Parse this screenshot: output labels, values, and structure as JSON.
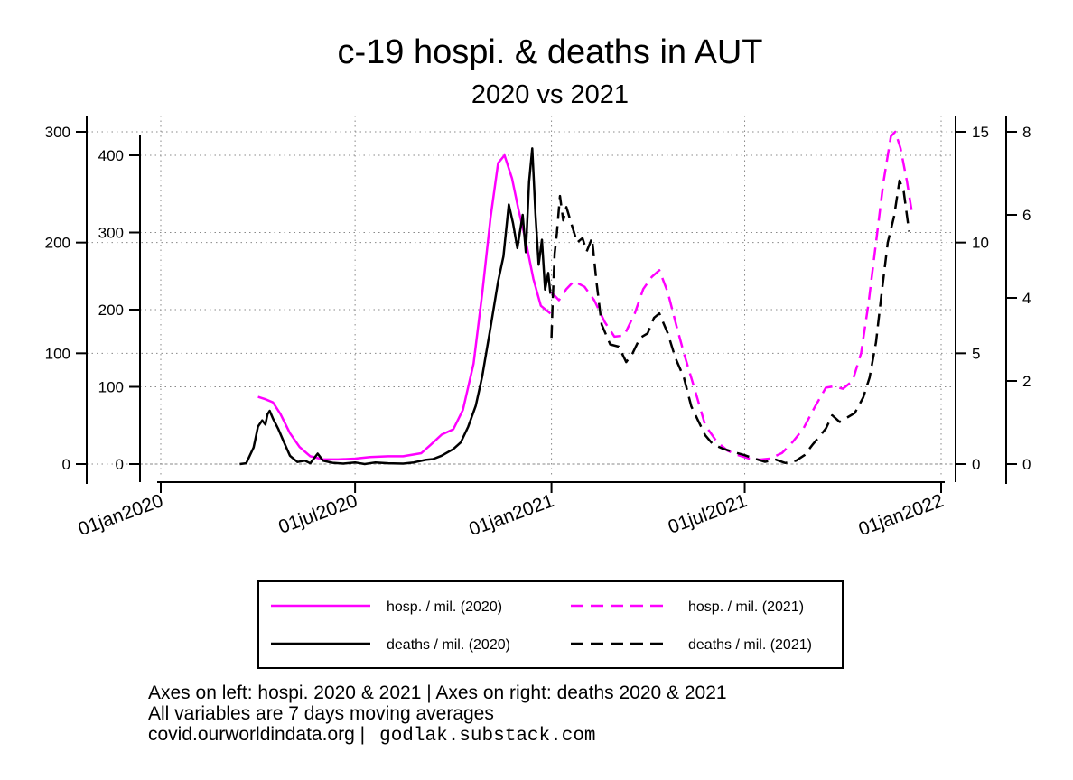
{
  "chart_data": {
    "type": "line",
    "title": "c-19 hospi. & deaths in AUT",
    "subtitle": "2020 vs 2021",
    "x_axis": {
      "type": "date",
      "ticks": [
        "01jan2020",
        "01jul2020",
        "01jan2021",
        "01jul2021",
        "01jan2022"
      ],
      "range": [
        "2020-01-01",
        "2022-01-01"
      ]
    },
    "y_axes": {
      "hosp_2021": {
        "side": "left",
        "ticks": [
          0,
          100,
          200,
          300
        ],
        "range": [
          0,
          300
        ]
      },
      "hosp_2020": {
        "side": "left",
        "ticks": [
          0,
          100,
          200,
          300,
          400
        ],
        "range": [
          0,
          400
        ]
      },
      "deaths_2021": {
        "side": "right",
        "ticks": [
          0,
          5,
          10,
          15
        ],
        "range": [
          0,
          15
        ]
      },
      "deaths_2020": {
        "side": "right",
        "ticks": [
          0,
          2,
          4,
          6,
          8
        ],
        "range": [
          0,
          8
        ]
      }
    },
    "grid": true,
    "legend_position": "bottom",
    "series": [
      {
        "name": "hosp. / mil. (2020)",
        "axis": "hosp_2020",
        "color": "#ff00ff",
        "style": "solid",
        "points": [
          [
            "2020-04-01",
            87
          ],
          [
            "2020-04-08",
            84
          ],
          [
            "2020-04-15",
            80
          ],
          [
            "2020-04-22",
            65
          ],
          [
            "2020-05-01",
            40
          ],
          [
            "2020-05-10",
            22
          ],
          [
            "2020-05-20",
            10
          ],
          [
            "2020-06-01",
            6
          ],
          [
            "2020-06-15",
            6
          ],
          [
            "2020-07-01",
            7
          ],
          [
            "2020-07-15",
            9
          ],
          [
            "2020-08-01",
            10
          ],
          [
            "2020-08-15",
            10
          ],
          [
            "2020-09-01",
            14
          ],
          [
            "2020-09-10",
            25
          ],
          [
            "2020-09-20",
            38
          ],
          [
            "2020-10-01",
            45
          ],
          [
            "2020-10-10",
            70
          ],
          [
            "2020-10-20",
            130
          ],
          [
            "2020-10-28",
            220
          ],
          [
            "2020-11-05",
            320
          ],
          [
            "2020-11-12",
            390
          ],
          [
            "2020-11-18",
            400
          ],
          [
            "2020-11-25",
            370
          ],
          [
            "2020-12-01",
            330
          ],
          [
            "2020-12-07",
            295
          ],
          [
            "2020-12-15",
            240
          ],
          [
            "2020-12-22",
            205
          ],
          [
            "2020-12-31",
            195
          ]
        ]
      },
      {
        "name": "hosp. / mil. (2021)",
        "axis": "hosp_2021",
        "color": "#ff00ff",
        "style": "dashed",
        "points": [
          [
            "2021-01-01",
            155
          ],
          [
            "2021-01-08",
            148
          ],
          [
            "2021-01-15",
            158
          ],
          [
            "2021-01-22",
            165
          ],
          [
            "2021-02-01",
            160
          ],
          [
            "2021-02-10",
            148
          ],
          [
            "2021-02-20",
            128
          ],
          [
            "2021-03-01",
            115
          ],
          [
            "2021-03-10",
            116
          ],
          [
            "2021-03-20",
            136
          ],
          [
            "2021-03-28",
            158
          ],
          [
            "2021-04-05",
            169
          ],
          [
            "2021-04-12",
            175
          ],
          [
            "2021-04-20",
            155
          ],
          [
            "2021-04-28",
            125
          ],
          [
            "2021-05-05",
            100
          ],
          [
            "2021-05-15",
            68
          ],
          [
            "2021-05-25",
            35
          ],
          [
            "2021-06-05",
            20
          ],
          [
            "2021-06-15",
            12
          ],
          [
            "2021-06-25",
            8
          ],
          [
            "2021-07-05",
            5
          ],
          [
            "2021-07-15",
            4
          ],
          [
            "2021-07-25",
            5
          ],
          [
            "2021-08-05",
            10
          ],
          [
            "2021-08-15",
            20
          ],
          [
            "2021-08-25",
            32
          ],
          [
            "2021-09-05",
            52
          ],
          [
            "2021-09-15",
            69
          ],
          [
            "2021-09-22",
            70
          ],
          [
            "2021-10-01",
            68
          ],
          [
            "2021-10-10",
            75
          ],
          [
            "2021-10-18",
            100
          ],
          [
            "2021-10-25",
            145
          ],
          [
            "2021-11-01",
            200
          ],
          [
            "2021-11-08",
            255
          ],
          [
            "2021-11-15",
            296
          ],
          [
            "2021-11-19",
            300
          ],
          [
            "2021-11-24",
            285
          ],
          [
            "2021-11-30",
            255
          ],
          [
            "2021-12-05",
            225
          ]
        ]
      },
      {
        "name": "deaths / mil. (2020)",
        "axis": "deaths_2020",
        "color": "#000000",
        "style": "solid",
        "points": [
          [
            "2020-03-15",
            0
          ],
          [
            "2020-03-21",
            0.02
          ],
          [
            "2020-03-28",
            0.4
          ],
          [
            "2020-04-01",
            0.9
          ],
          [
            "2020-04-05",
            1.05
          ],
          [
            "2020-04-08",
            0.95
          ],
          [
            "2020-04-10",
            1.2
          ],
          [
            "2020-04-12",
            1.28
          ],
          [
            "2020-04-15",
            1.1
          ],
          [
            "2020-04-20",
            0.85
          ],
          [
            "2020-04-25",
            0.55
          ],
          [
            "2020-05-01",
            0.2
          ],
          [
            "2020-05-08",
            0.05
          ],
          [
            "2020-05-15",
            0.08
          ],
          [
            "2020-05-20",
            0.02
          ],
          [
            "2020-05-27",
            0.25
          ],
          [
            "2020-06-01",
            0.08
          ],
          [
            "2020-06-10",
            0.03
          ],
          [
            "2020-06-20",
            0.01
          ],
          [
            "2020-07-01",
            0.04
          ],
          [
            "2020-07-10",
            0
          ],
          [
            "2020-07-20",
            0.04
          ],
          [
            "2020-08-01",
            0.02
          ],
          [
            "2020-08-15",
            0.01
          ],
          [
            "2020-08-25",
            0.04
          ],
          [
            "2020-09-05",
            0.1
          ],
          [
            "2020-09-12",
            0.12
          ],
          [
            "2020-09-20",
            0.2
          ],
          [
            "2020-10-01",
            0.36
          ],
          [
            "2020-10-08",
            0.52
          ],
          [
            "2020-10-15",
            0.9
          ],
          [
            "2020-10-22",
            1.4
          ],
          [
            "2020-10-28",
            2.1
          ],
          [
            "2020-11-05",
            3.3
          ],
          [
            "2020-11-12",
            4.4
          ],
          [
            "2020-11-17",
            5.0
          ],
          [
            "2020-11-22",
            6.25
          ],
          [
            "2020-11-26",
            5.8
          ],
          [
            "2020-11-30",
            5.2
          ],
          [
            "2020-12-05",
            6.0
          ],
          [
            "2020-12-08",
            5.1
          ],
          [
            "2020-12-11",
            6.8
          ],
          [
            "2020-12-14",
            7.6
          ],
          [
            "2020-12-17",
            6.0
          ],
          [
            "2020-12-20",
            4.8
          ],
          [
            "2020-12-23",
            5.4
          ],
          [
            "2020-12-26",
            4.2
          ],
          [
            "2020-12-29",
            4.6
          ],
          [
            "2020-12-31",
            4.1
          ]
        ]
      },
      {
        "name": "deaths / mil. (2021)",
        "axis": "deaths_2021",
        "color": "#000000",
        "style": "dashed",
        "points": [
          [
            "2021-01-01",
            5.7
          ],
          [
            "2021-01-02",
            7.2
          ],
          [
            "2021-01-04",
            9.5
          ],
          [
            "2021-01-06",
            10.4
          ],
          [
            "2021-01-09",
            12.1
          ],
          [
            "2021-01-12",
            11.0
          ],
          [
            "2021-01-15",
            11.6
          ],
          [
            "2021-01-20",
            10.8
          ],
          [
            "2021-01-25",
            10.0
          ],
          [
            "2021-01-30",
            10.2
          ],
          [
            "2021-02-03",
            9.6
          ],
          [
            "2021-02-08",
            10.2
          ],
          [
            "2021-02-12",
            8.3
          ],
          [
            "2021-02-17",
            6.3
          ],
          [
            "2021-02-25",
            5.4
          ],
          [
            "2021-03-05",
            5.3
          ],
          [
            "2021-03-12",
            4.6
          ],
          [
            "2021-03-18",
            5.0
          ],
          [
            "2021-03-25",
            5.7
          ],
          [
            "2021-04-01",
            5.9
          ],
          [
            "2021-04-07",
            6.6
          ],
          [
            "2021-04-12",
            6.8
          ],
          [
            "2021-04-20",
            5.9
          ],
          [
            "2021-04-27",
            4.8
          ],
          [
            "2021-05-05",
            3.9
          ],
          [
            "2021-05-12",
            2.6
          ],
          [
            "2021-05-18",
            2.0
          ],
          [
            "2021-05-25",
            1.3
          ],
          [
            "2021-06-01",
            0.9
          ],
          [
            "2021-06-10",
            0.7
          ],
          [
            "2021-06-20",
            0.55
          ],
          [
            "2021-07-01",
            0.4
          ],
          [
            "2021-07-10",
            0.25
          ],
          [
            "2021-07-20",
            0.1
          ],
          [
            "2021-07-30",
            0.2
          ],
          [
            "2021-08-08",
            0.05
          ],
          [
            "2021-08-18",
            0.15
          ],
          [
            "2021-08-26",
            0.4
          ],
          [
            "2021-09-03",
            0.9
          ],
          [
            "2021-09-10",
            1.3
          ],
          [
            "2021-09-15",
            1.6
          ],
          [
            "2021-09-21",
            2.2
          ],
          [
            "2021-09-28",
            1.9
          ],
          [
            "2021-10-05",
            2.1
          ],
          [
            "2021-10-12",
            2.3
          ],
          [
            "2021-10-20",
            3.0
          ],
          [
            "2021-10-26",
            3.9
          ],
          [
            "2021-11-01",
            5.5
          ],
          [
            "2021-11-06",
            7.6
          ],
          [
            "2021-11-12",
            10.0
          ],
          [
            "2021-11-18",
            11.2
          ],
          [
            "2021-11-23",
            12.8
          ],
          [
            "2021-11-27",
            12.3
          ],
          [
            "2021-12-02",
            10.5
          ]
        ]
      }
    ]
  },
  "footer": {
    "line1": "Axes on left: hospi. 2020 & 2021 | Axes on right: deaths 2020 & 2021",
    "line2": "All variables are 7 days moving averages",
    "line3": "covid.ourworldindata.org |",
    "credit": "godlak.substack.com"
  }
}
